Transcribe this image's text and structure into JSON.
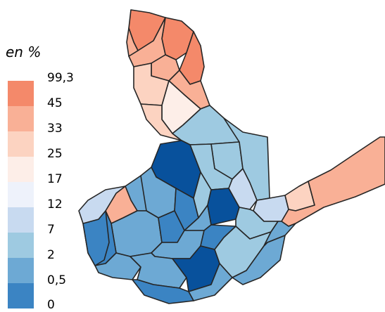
{
  "legend": {
    "title": "en %",
    "breaks": [
      "99,3",
      "45",
      "33",
      "25",
      "17",
      "12",
      "7",
      "2",
      "0,5",
      "0"
    ],
    "colors": [
      "#f4896a",
      "#f9b096",
      "#fcd3c1",
      "#fdeee8",
      "#eef2fb",
      "#c8daf0",
      "#9ecae1",
      "#6da9d4",
      "#3b84c3",
      "#08519c"
    ]
  },
  "map": {
    "districts": [
      {
        "class": 0
      },
      {
        "class": 0
      },
      {
        "class": 0
      },
      {
        "class": 1
      },
      {
        "class": 1
      },
      {
        "class": 1
      },
      {
        "class": 2
      },
      {
        "class": 3
      },
      {
        "class": 2
      },
      {
        "class": 1
      },
      {
        "class": 6
      },
      {
        "class": 6
      },
      {
        "class": 6
      },
      {
        "class": 6
      },
      {
        "class": 9
      },
      {
        "class": 7
      },
      {
        "class": 7
      },
      {
        "class": 8
      },
      {
        "class": 6
      },
      {
        "class": 7
      },
      {
        "class": 9
      },
      {
        "class": 5
      },
      {
        "class": 5
      },
      {
        "class": 6
      },
      {
        "class": 2
      },
      {
        "class": 1
      },
      {
        "class": 1
      },
      {
        "class": 7
      },
      {
        "class": 8
      },
      {
        "class": 7
      },
      {
        "class": 8
      },
      {
        "class": 8
      },
      {
        "class": 8
      },
      {
        "class": 7
      },
      {
        "class": 7
      },
      {
        "class": 9
      },
      {
        "class": 6
      },
      {
        "class": 7
      },
      {
        "class": 7
      },
      {
        "class": 8
      },
      {
        "class": 5
      },
      {
        "class": 7
      }
    ]
  }
}
